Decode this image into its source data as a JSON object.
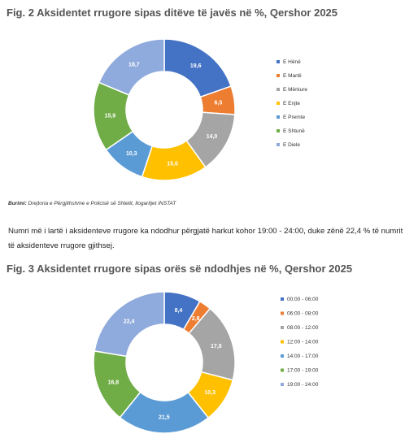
{
  "figure2": {
    "title": "Fig. 2 Aksidentet rrugore sipas ditëve të javës në %, Qershor 2025"
  },
  "figure3": {
    "title": "Fig. 3 Aksidentet rrugore sipas orës së ndodhjes në %, Qershor 2025"
  },
  "source": {
    "label": "Burimi:",
    "text": " Drejtoria e Përgjithshme e Policisë së Shtetit, llogaritjet INSTAT"
  },
  "paragraph": "Numri më i lartë i aksidenteve rrugore ka ndodhur përgjatë harkut kohor 19:00 - 24:00, duke zënë 22,4 % të numrit të aksidenteve rrugore gjithsej.",
  "chart_data": [
    {
      "type": "pie",
      "variant": "donut",
      "title": "",
      "legend_position": "right",
      "categories": [
        "E Hënë",
        "E Martë",
        "E Mërkure",
        "E Enjte",
        "E Premte",
        "E Shtunë",
        "E Diele"
      ],
      "values": [
        19.6,
        6.5,
        14.0,
        15.0,
        10.3,
        15.9,
        18.7
      ],
      "labels": [
        "19,6",
        "6,5",
        "14,0",
        "15,0",
        "10,3",
        "15,9",
        "18,7"
      ],
      "colors": [
        "#4472C4",
        "#ED7D31",
        "#A5A5A5",
        "#FFC000",
        "#5B9BD5",
        "#70AD47",
        "#8FAADC"
      ]
    },
    {
      "type": "pie",
      "variant": "donut",
      "title": "",
      "legend_position": "right",
      "categories": [
        "00:00 - 06:00",
        "06:00 - 08:00",
        "08:00 - 12:00",
        "12:00 - 14:00",
        "14:00 - 17:00",
        "17:00 - 19:00",
        "19:00 - 24:00"
      ],
      "values": [
        8.4,
        2.8,
        17.8,
        10.3,
        21.5,
        16.8,
        22.4
      ],
      "labels": [
        "8,4",
        "2,8",
        "17,8",
        "10,3",
        "21,5",
        "16,8",
        "22,4"
      ],
      "colors": [
        "#4472C4",
        "#ED7D31",
        "#A5A5A5",
        "#FFC000",
        "#5B9BD5",
        "#70AD47",
        "#8FAADC"
      ]
    }
  ]
}
